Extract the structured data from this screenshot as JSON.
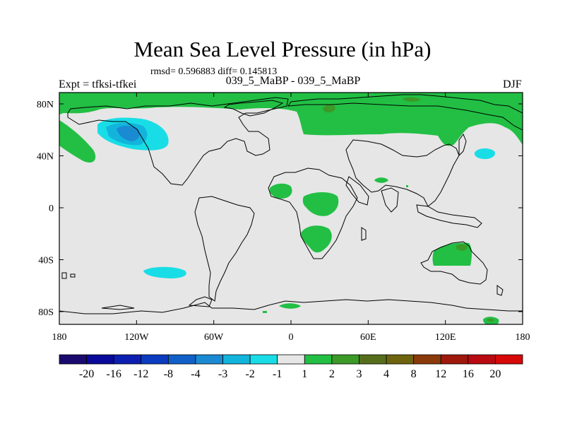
{
  "title": "Mean Sea Level Pressure (in hPa)",
  "stats": "rmsd= 0.596883 diff= 0.145813",
  "left_label": "Expt = tfksi-tfkei",
  "subtitle": "039_5_MaBP - 039_5_MaBP",
  "season": "DJF",
  "axes": {
    "lon_ticks": [
      "180",
      "120W",
      "60W",
      "0",
      "60E",
      "120E",
      "180"
    ],
    "lat_ticks": [
      "80N",
      "40N",
      "0",
      "40S",
      "80S"
    ]
  },
  "colorbar": {
    "labels": [
      "-20",
      "-16",
      "-12",
      "-8",
      "-4",
      "-3",
      "-2",
      "-1",
      "1",
      "2",
      "3",
      "4",
      "8",
      "12",
      "16",
      "20"
    ],
    "colors": [
      "#1a0a6e",
      "#0a0a9a",
      "#0c1fb0",
      "#0b3cc0",
      "#1060c8",
      "#1a8ad2",
      "#12b4dc",
      "#19dde6",
      "#e6e6e6",
      "#22bf44",
      "#3c9a28",
      "#566e1c",
      "#6e6410",
      "#8a3a0a",
      "#9e180c",
      "#b80a10",
      "#d60808"
    ]
  },
  "colors": {
    "land_background": "#e6e6e6",
    "positive_small": "#22bf44",
    "positive_mid": "#3c9a28",
    "negative_small": "#19dde6",
    "negative_mid": "#12b4dc",
    "negative_strong": "#1a8ad2"
  }
}
